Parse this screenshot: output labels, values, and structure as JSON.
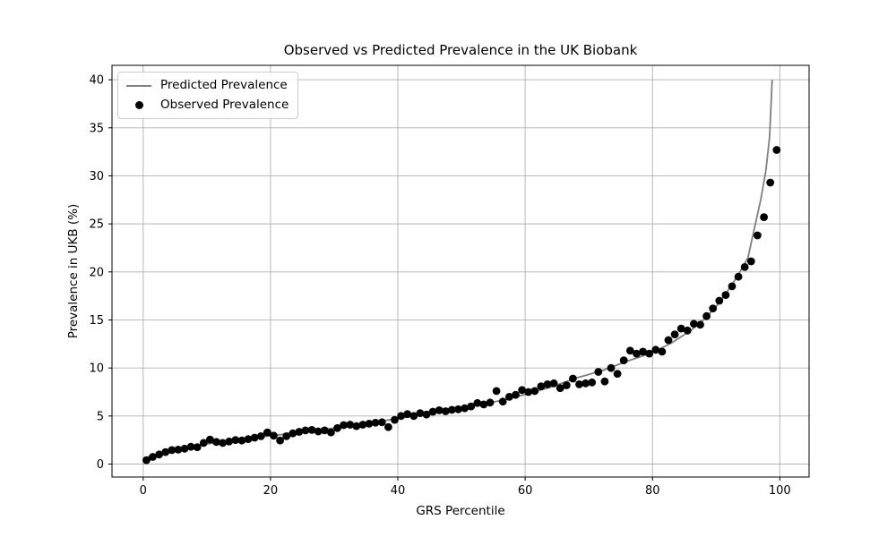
{
  "chart_data": {
    "type": "line+scatter",
    "title": "Observed vs Predicted Prevalence in the UK Biobank",
    "xlabel": "GRS Percentile",
    "ylabel": "Prevalence in UKB (%)",
    "xlim": [
      -4.9,
      104.6
    ],
    "ylim": [
      -1.35,
      41.5
    ],
    "xticks": [
      0,
      20,
      40,
      60,
      80,
      100
    ],
    "yticks": [
      0,
      5,
      10,
      15,
      20,
      25,
      30,
      35,
      40
    ],
    "grid": true,
    "grid_color": "#b0b0b0",
    "axis_color": "#000000",
    "legend_position": "upper left",
    "series": [
      {
        "name": "Predicted Prevalence",
        "type": "line",
        "color": "#808080",
        "line_width": 1.8,
        "x": [
          0,
          2,
          4,
          6,
          8,
          10,
          12,
          15,
          18,
          21,
          24,
          27,
          30,
          33,
          36,
          40,
          44,
          48,
          52,
          56,
          60,
          64,
          68,
          72,
          76,
          80,
          83,
          86,
          88,
          90,
          92,
          93.5,
          95,
          96,
          97,
          97.8,
          98.4,
          98.8
        ],
        "y": [
          0.6,
          0.95,
          1.25,
          1.55,
          1.8,
          2.1,
          2.25,
          2.55,
          2.8,
          3.0,
          3.3,
          3.5,
          3.75,
          4.0,
          4.3,
          4.75,
          5.15,
          5.6,
          6.05,
          6.6,
          7.25,
          8.0,
          8.95,
          9.7,
          10.7,
          11.6,
          12.6,
          13.9,
          15.0,
          16.4,
          18.2,
          19.7,
          21.5,
          24.5,
          27.5,
          30.5,
          34.0,
          40.0
        ]
      },
      {
        "name": "Observed Prevalence",
        "type": "scatter",
        "color": "#000000",
        "marker_radius": 4.4,
        "x": [
          0.5,
          1.5,
          2.5,
          3.5,
          4.5,
          5.5,
          6.5,
          7.5,
          8.5,
          9.5,
          10.5,
          11.5,
          12.5,
          13.5,
          14.5,
          15.5,
          16.5,
          17.5,
          18.5,
          19.5,
          20.5,
          21.5,
          22.5,
          23.5,
          24.5,
          25.5,
          26.5,
          27.5,
          28.5,
          29.5,
          30.5,
          31.5,
          32.5,
          33.5,
          34.5,
          35.5,
          36.5,
          37.5,
          38.5,
          39.5,
          40.5,
          41.5,
          42.5,
          43.5,
          44.5,
          45.5,
          46.5,
          47.5,
          48.5,
          49.5,
          50.5,
          51.5,
          52.5,
          53.5,
          54.5,
          55.5,
          56.5,
          57.5,
          58.5,
          59.5,
          60.5,
          61.5,
          62.5,
          63.5,
          64.5,
          65.5,
          66.5,
          67.5,
          68.5,
          69.5,
          70.5,
          71.5,
          72.5,
          73.5,
          74.5,
          75.5,
          76.5,
          77.5,
          78.5,
          79.5,
          80.5,
          81.5,
          82.5,
          83.5,
          84.5,
          85.5,
          86.5,
          87.5,
          88.5,
          89.5,
          90.5,
          91.5,
          92.5,
          93.5,
          94.5,
          95.5,
          96.5,
          97.5,
          98.5,
          99.5
        ],
        "y": [
          0.4,
          0.75,
          1.0,
          1.25,
          1.45,
          1.5,
          1.6,
          1.8,
          1.75,
          2.2,
          2.55,
          2.3,
          2.2,
          2.35,
          2.5,
          2.45,
          2.6,
          2.75,
          2.9,
          3.3,
          2.95,
          2.45,
          2.9,
          3.2,
          3.35,
          3.5,
          3.55,
          3.4,
          3.5,
          3.3,
          3.75,
          4.05,
          4.1,
          3.95,
          4.1,
          4.2,
          4.3,
          4.35,
          3.85,
          4.6,
          5.0,
          5.2,
          5.0,
          5.3,
          5.15,
          5.45,
          5.6,
          5.5,
          5.65,
          5.7,
          5.8,
          6.0,
          6.35,
          6.2,
          6.4,
          7.6,
          6.5,
          7.0,
          7.2,
          7.7,
          7.5,
          7.6,
          8.1,
          8.3,
          8.4,
          7.9,
          8.2,
          8.9,
          8.3,
          8.4,
          8.5,
          9.6,
          8.6,
          10.0,
          9.4,
          10.8,
          11.8,
          11.5,
          11.7,
          11.5,
          11.9,
          11.7,
          12.9,
          13.5,
          14.1,
          13.9,
          14.6,
          14.5,
          15.4,
          16.2,
          17.0,
          17.6,
          18.5,
          19.5,
          20.5,
          21.1,
          23.8,
          25.7,
          29.3,
          32.7
        ]
      }
    ]
  }
}
